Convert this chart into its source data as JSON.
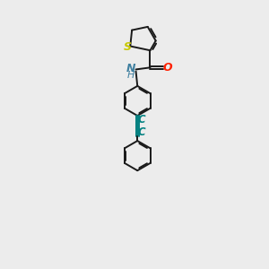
{
  "background_color": "#ececec",
  "bond_color": "#1a1a1a",
  "S_color": "#c8c800",
  "N_color": "#4080a0",
  "O_color": "#ff2000",
  "C_triple_color": "#008080",
  "figsize": [
    3.0,
    3.0
  ],
  "dpi": 100,
  "xlim": [
    0,
    10
  ],
  "ylim": [
    0,
    14
  ]
}
